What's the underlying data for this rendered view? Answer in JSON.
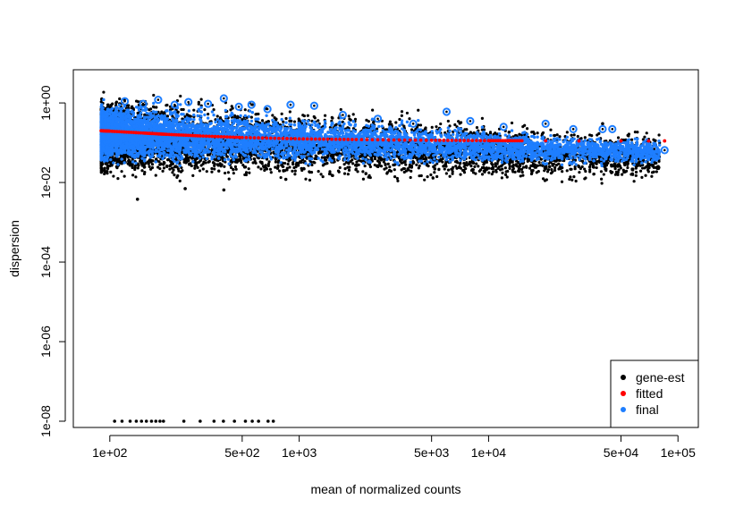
{
  "chart_data": {
    "type": "scatter",
    "title": "",
    "xlabel": "mean of normalized counts",
    "ylabel": "dispersion",
    "x_scale": "log",
    "y_scale": "log",
    "xlim": [
      70,
      120000
    ],
    "ylim": [
      1e-08,
      5
    ],
    "x_ticks": [
      100,
      500,
      1000,
      5000,
      10000,
      50000,
      100000
    ],
    "x_tick_labels": [
      "1e+02",
      "5e+02",
      "1e+03",
      "5e+03",
      "1e+04",
      "5e+04",
      "1e+05"
    ],
    "y_ticks": [
      1e-08,
      1e-06,
      0.0001,
      0.01,
      1
    ],
    "y_tick_labels": [
      "1e-08",
      "1e-06",
      "1e-04",
      "1e-02",
      "1e+00"
    ],
    "grid": false,
    "legend_position": "bottom-right",
    "legend": [
      {
        "label": "gene-est",
        "color": "#000000"
      },
      {
        "label": "fitted",
        "color": "#ff0000"
      },
      {
        "label": "final",
        "color": "#1e7eff"
      }
    ],
    "series": [
      {
        "name": "gene-est",
        "color": "#000000",
        "points": [
          [
            140,
            0.0038
          ],
          [
            250,
            0.007
          ],
          [
            400,
            0.0065
          ],
          [
            850,
            0.012
          ],
          [
            1500,
            0.015
          ],
          [
            3000,
            0.02
          ],
          [
            5200,
            0.022
          ],
          [
            12000,
            0.03
          ],
          [
            17000,
            0.045
          ],
          [
            21000,
            0.025
          ],
          [
            30000,
            0.025
          ],
          [
            34000,
            0.07
          ],
          [
            40000,
            0.3
          ],
          [
            75000,
            0.06
          ],
          [
            106,
            1e-08
          ],
          [
            116,
            1e-08
          ],
          [
            128,
            1e-08
          ],
          [
            138,
            1e-08
          ],
          [
            147,
            1e-08
          ],
          [
            156,
            1e-08
          ],
          [
            166,
            1e-08
          ],
          [
            175,
            1e-08
          ],
          [
            184,
            1e-08
          ],
          [
            192,
            1e-08
          ],
          [
            246,
            1e-08
          ],
          [
            300,
            1e-08
          ],
          [
            355,
            1e-08
          ],
          [
            398,
            1e-08
          ],
          [
            455,
            1e-08
          ],
          [
            520,
            1e-08
          ],
          [
            565,
            1e-08
          ],
          [
            610,
            1e-08
          ],
          [
            685,
            1e-08
          ],
          [
            730,
            1e-08
          ]
        ]
      },
      {
        "name": "fitted",
        "color": "#ff0000",
        "points": [
          [
            90,
            0.2
          ],
          [
            100,
            0.195
          ],
          [
            150,
            0.175
          ],
          [
            200,
            0.162
          ],
          [
            300,
            0.148
          ],
          [
            500,
            0.135
          ],
          [
            1000,
            0.125
          ],
          [
            2000,
            0.12
          ],
          [
            5000,
            0.115
          ],
          [
            10000,
            0.113
          ],
          [
            15000,
            0.112
          ],
          [
            20000,
            0.112
          ],
          [
            30000,
            0.111
          ],
          [
            50000,
            0.111
          ],
          [
            70000,
            0.111
          ],
          [
            85000,
            0.111
          ]
        ]
      },
      {
        "name": "final",
        "color": "#1e7eff",
        "points": [
          [
            120,
            1.1
          ],
          [
            150,
            0.95
          ],
          [
            180,
            1.2
          ],
          [
            220,
            0.9
          ],
          [
            260,
            1.05
          ],
          [
            330,
            0.95
          ],
          [
            400,
            1.3
          ],
          [
            480,
            0.8
          ],
          [
            560,
            0.9
          ],
          [
            680,
            0.7
          ],
          [
            900,
            0.9
          ],
          [
            1200,
            0.85
          ],
          [
            1700,
            0.5
          ],
          [
            2600,
            0.4
          ],
          [
            4000,
            0.3
          ],
          [
            6000,
            0.6
          ],
          [
            8000,
            0.35
          ],
          [
            12000,
            0.25
          ],
          [
            20000,
            0.3
          ],
          [
            28000,
            0.22
          ],
          [
            40000,
            0.22
          ],
          [
            45000,
            0.22
          ],
          [
            75000,
            0.07
          ],
          [
            85000,
            0.065
          ]
        ]
      }
    ]
  }
}
